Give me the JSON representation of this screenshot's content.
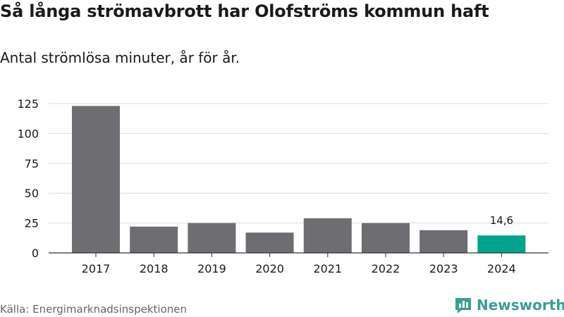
{
  "chart_data": {
    "type": "bar",
    "title": "Så långa strömavbrott har Olofströms kommun haft",
    "subtitle": "Antal strömlösa minuter, år för år.",
    "xlabel": "",
    "ylabel": "",
    "categories": [
      "2017",
      "2018",
      "2019",
      "2020",
      "2021",
      "2022",
      "2023",
      "2024"
    ],
    "values": [
      123,
      22,
      25,
      17,
      29,
      25,
      19,
      14.6
    ],
    "highlight_index": 7,
    "data_labels": [
      {
        "index": 7,
        "text": "14,6"
      }
    ],
    "yticks": [
      0,
      25,
      50,
      75,
      100,
      125
    ],
    "ylim": [
      0,
      125
    ],
    "grid": true,
    "colors": {
      "bar": "#6e6d72",
      "highlight": "#00a38d",
      "grid": "#dddddd",
      "axis": "#333333"
    }
  },
  "source": "Källa: Energimarknadsinspektionen",
  "brand": {
    "name": "Newsworthy",
    "color": "#3a9e94",
    "icon": "newsworthy-logo-icon"
  }
}
